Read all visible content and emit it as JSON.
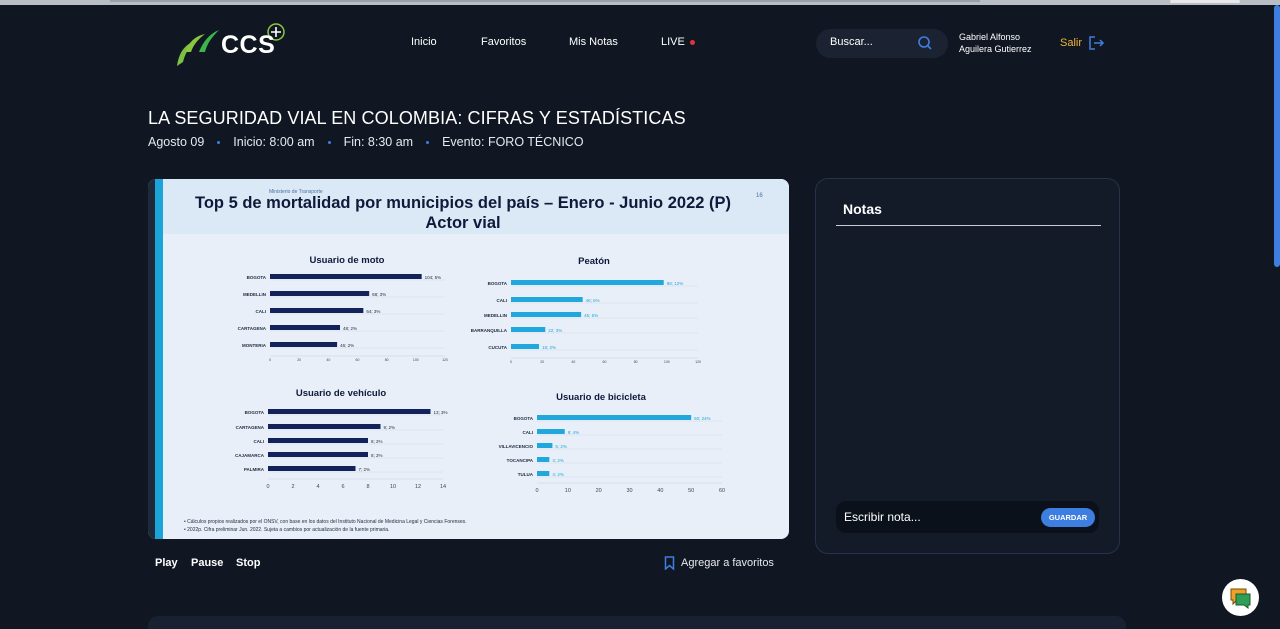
{
  "header": {
    "logo_text": "CCS",
    "nav": [
      "Inicio",
      "Favoritos",
      "Mis Notas",
      "LIVE"
    ],
    "search_placeholder": "Buscar...",
    "user_name_line1": "Gabriel Alfonso",
    "user_name_line2": "Aguilera Gutierrez",
    "logout_label": "Salir"
  },
  "event": {
    "title": "LA SEGURIDAD VIAL EN COLOMBIA: CIFRAS Y ESTADÍSTICAS",
    "date": "Agosto 09",
    "start": "Inicio: 8:00 am",
    "end": "Fin: 8:30 am",
    "event_type": "Evento: FORO TÉCNICO"
  },
  "slide": {
    "ministry": "Ministerio de Transporte",
    "page_number": "16",
    "title_line1": "Top 5 de mortalidad por municipios del país – Enero - Junio 2022 (P)",
    "title_line2": "Actor vial",
    "footnote_1": "• Cálculos propios realizados por el ONSV, con base en los datos del Instituto Nacional de Medicina Legal y Ciencias Forenses.",
    "footnote_2": "• 2022p. Cifra preliminar Jun. 2022. Sujeta a cambios por actualización de la fuente primaria."
  },
  "chart_data": [
    {
      "type": "bar",
      "title": "Usuario de moto",
      "categories": [
        "BOGOTA",
        "MEDELLIN",
        "CALI",
        "CARTAGENA",
        "MONTERIA"
      ],
      "values": [
        104,
        68,
        64,
        48,
        46
      ],
      "labels": [
        "104; 5%",
        "68; 3%",
        "64; 3%",
        "48; 2%",
        "46; 2%"
      ],
      "xticks": [
        0,
        20,
        40,
        60,
        80,
        100,
        120
      ],
      "xlim": [
        0,
        120
      ],
      "color": "#13235a"
    },
    {
      "type": "bar",
      "title": "Peatón",
      "categories": [
        "BOGOTA",
        "CALI",
        "MEDELLIN",
        "BARRANQUILLA",
        "CUCUTA"
      ],
      "values": [
        98,
        46,
        45,
        22,
        18
      ],
      "labels": [
        "98; 12%",
        "46; 6%",
        "45; 5%",
        "22; 3%",
        "18; 2%"
      ],
      "xticks": [
        0,
        20,
        40,
        60,
        80,
        100,
        120
      ],
      "xlim": [
        0,
        120
      ],
      "color": "#20a7dc"
    },
    {
      "type": "bar",
      "title": "Usuario de vehículo",
      "categories": [
        "BOGOTA",
        "CARTAGENA",
        "CALI",
        "CAJAMARCA",
        "PALMIRA"
      ],
      "values": [
        13,
        9,
        8,
        8,
        7
      ],
      "labels": [
        "13; 3%",
        "9; 2%",
        "8; 2%",
        "8; 2%",
        "7; 2%"
      ],
      "xticks": [
        0,
        2,
        4,
        6,
        8,
        10,
        12,
        14
      ],
      "xlim": [
        0,
        14
      ],
      "color": "#13235a"
    },
    {
      "type": "bar",
      "title": "Usuario de bicicleta",
      "categories": [
        "BOGOTA",
        "CALI",
        "VILLAVICENCIO",
        "TOCANCIPA",
        "TULUA"
      ],
      "values": [
        50,
        9,
        5,
        4,
        4
      ],
      "labels": [
        "50; 24%",
        "9; 4%",
        "5; 2%",
        "4; 2%",
        "4; 2%"
      ],
      "xticks": [
        0,
        10,
        20,
        30,
        40,
        50,
        60
      ],
      "xlim": [
        0,
        60
      ],
      "color": "#20a7dc"
    }
  ],
  "player": {
    "play": "Play",
    "pause": "Pause",
    "stop": "Stop",
    "favorite": "Agregar a favoritos"
  },
  "notes": {
    "title": "Notas",
    "placeholder": "Escribir nota...",
    "save": "GUARDAR"
  },
  "colors": {
    "accent": "#3d7ee0",
    "background": "#111722",
    "logout": "#f0b53a",
    "live": "#e2333a"
  }
}
